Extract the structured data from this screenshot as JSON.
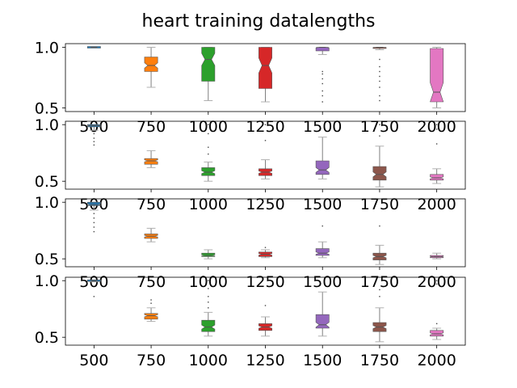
{
  "chart_data": {
    "type": "boxplot",
    "title": "heart training datalengths",
    "categories": [
      "500",
      "750",
      "1000",
      "1250",
      "1500",
      "1750",
      "2000"
    ],
    "colors": [
      "#1f77b4",
      "#ff7f0e",
      "#2ca02c",
      "#d62728",
      "#9467bd",
      "#8c564b",
      "#e377c2"
    ],
    "notched": true,
    "panels": [
      {
        "ylim": [
          0.47,
          1.03
        ],
        "yticks": [
          0.5,
          1.0
        ],
        "ytick_labels": [
          "0.5",
          "1.0"
        ],
        "boxes": [
          {
            "whislo": 1.0,
            "q1": 1.0,
            "med": 1.0,
            "q3": 1.0,
            "whishi": 1.0,
            "fliers": []
          },
          {
            "whislo": 0.67,
            "q1": 0.8,
            "med": 0.85,
            "q3": 0.92,
            "whishi": 1.0,
            "fliers": []
          },
          {
            "whislo": 0.56,
            "q1": 0.72,
            "med": 0.9,
            "q3": 1.0,
            "whishi": 1.0,
            "fliers": []
          },
          {
            "whislo": 0.55,
            "q1": 0.66,
            "med": 0.85,
            "q3": 1.0,
            "whishi": 1.0,
            "fliers": []
          },
          {
            "whislo": 0.94,
            "q1": 0.97,
            "med": 1.0,
            "q3": 1.0,
            "whishi": 1.0,
            "fliers": [
              0.8,
              0.78,
              0.74,
              0.7,
              0.64,
              0.6,
              0.55
            ]
          },
          {
            "whislo": 0.98,
            "q1": 0.99,
            "med": 1.0,
            "q3": 1.0,
            "whishi": 1.0,
            "fliers": [
              0.9,
              0.84,
              0.8,
              0.76,
              0.72,
              0.67,
              0.6,
              0.56
            ]
          },
          {
            "whislo": 0.5,
            "q1": 0.55,
            "med": 0.63,
            "q3": 0.99,
            "whishi": 1.0,
            "fliers": []
          }
        ]
      },
      {
        "ylim": [
          0.43,
          1.03
        ],
        "yticks": [
          0.5,
          1.0
        ],
        "ytick_labels": [
          "0.5",
          "1.0"
        ],
        "boxes": [
          {
            "whislo": 0.95,
            "q1": 0.98,
            "med": 0.99,
            "q3": 1.0,
            "whishi": 1.0,
            "fliers": [
              0.92,
              0.88,
              0.85,
              0.82
            ]
          },
          {
            "whislo": 0.62,
            "q1": 0.65,
            "med": 0.68,
            "q3": 0.7,
            "whishi": 0.77,
            "fliers": []
          },
          {
            "whislo": 0.5,
            "q1": 0.55,
            "med": 0.58,
            "q3": 0.62,
            "whishi": 0.67,
            "fliers": [
              0.74,
              0.8,
              0.92,
              1.0
            ]
          },
          {
            "whislo": 0.52,
            "q1": 0.55,
            "med": 0.58,
            "q3": 0.61,
            "whishi": 0.69,
            "fliers": [
              0.86,
              1.0
            ]
          },
          {
            "whislo": 0.52,
            "q1": 0.56,
            "med": 0.6,
            "q3": 0.68,
            "whishi": 0.89,
            "fliers": []
          },
          {
            "whislo": 0.45,
            "q1": 0.51,
            "med": 0.56,
            "q3": 0.63,
            "whishi": 0.81,
            "fliers": [
              0.9,
              1.0
            ]
          },
          {
            "whislo": 0.48,
            "q1": 0.51,
            "med": 0.53,
            "q3": 0.56,
            "whishi": 0.61,
            "fliers": [
              0.83,
              0.96,
              1.0
            ]
          }
        ]
      },
      {
        "ylim": [
          0.43,
          1.03
        ],
        "yticks": [
          0.5,
          1.0
        ],
        "ytick_labels": [
          "0.5",
          "1.0"
        ],
        "boxes": [
          {
            "whislo": 0.93,
            "q1": 0.97,
            "med": 0.98,
            "q3": 1.0,
            "whishi": 1.0,
            "fliers": [
              0.9,
              0.86,
              0.82,
              0.78,
              0.74
            ]
          },
          {
            "whislo": 0.65,
            "q1": 0.68,
            "med": 0.7,
            "q3": 0.72,
            "whishi": 0.77,
            "fliers": []
          },
          {
            "whislo": 0.5,
            "q1": 0.52,
            "med": 0.53,
            "q3": 0.55,
            "whishi": 0.58,
            "fliers": []
          },
          {
            "whislo": 0.51,
            "q1": 0.52,
            "med": 0.54,
            "q3": 0.56,
            "whishi": 0.58,
            "fliers": [
              0.6
            ]
          },
          {
            "whislo": 0.51,
            "q1": 0.53,
            "med": 0.55,
            "q3": 0.59,
            "whishi": 0.65,
            "fliers": [
              0.79
            ]
          },
          {
            "whislo": 0.45,
            "q1": 0.49,
            "med": 0.52,
            "q3": 0.55,
            "whishi": 0.62,
            "fliers": [
              0.79
            ]
          },
          {
            "whislo": 0.5,
            "q1": 0.51,
            "med": 0.52,
            "q3": 0.53,
            "whishi": 0.55,
            "fliers": []
          }
        ]
      },
      {
        "ylim": [
          0.43,
          1.03
        ],
        "yticks": [
          0.5,
          1.0
        ],
        "ytick_labels": [
          "0.5",
          "1.0"
        ],
        "boxes": [
          {
            "whislo": 0.99,
            "q1": 1.0,
            "med": 1.0,
            "q3": 1.0,
            "whishi": 1.0,
            "fliers": [
              0.86
            ]
          },
          {
            "whislo": 0.64,
            "q1": 0.66,
            "med": 0.69,
            "q3": 0.71,
            "whishi": 0.76,
            "fliers": [
              0.8,
              0.83
            ]
          },
          {
            "whislo": 0.51,
            "q1": 0.55,
            "med": 0.59,
            "q3": 0.65,
            "whishi": 0.72,
            "fliers": [
              0.76,
              0.81,
              0.86,
              0.93,
              1.0
            ]
          },
          {
            "whislo": 0.51,
            "q1": 0.56,
            "med": 0.59,
            "q3": 0.62,
            "whishi": 0.68,
            "fliers": [
              0.78
            ]
          },
          {
            "whislo": 0.51,
            "q1": 0.58,
            "med": 0.61,
            "q3": 0.7,
            "whishi": 0.9,
            "fliers": []
          },
          {
            "whislo": 0.46,
            "q1": 0.55,
            "med": 0.59,
            "q3": 0.63,
            "whishi": 0.76,
            "fliers": [
              0.86,
              0.92
            ]
          },
          {
            "whislo": 0.48,
            "q1": 0.51,
            "med": 0.53,
            "q3": 0.56,
            "whishi": 0.58,
            "fliers": [
              0.62,
              0.97,
              1.0
            ]
          }
        ]
      }
    ]
  }
}
